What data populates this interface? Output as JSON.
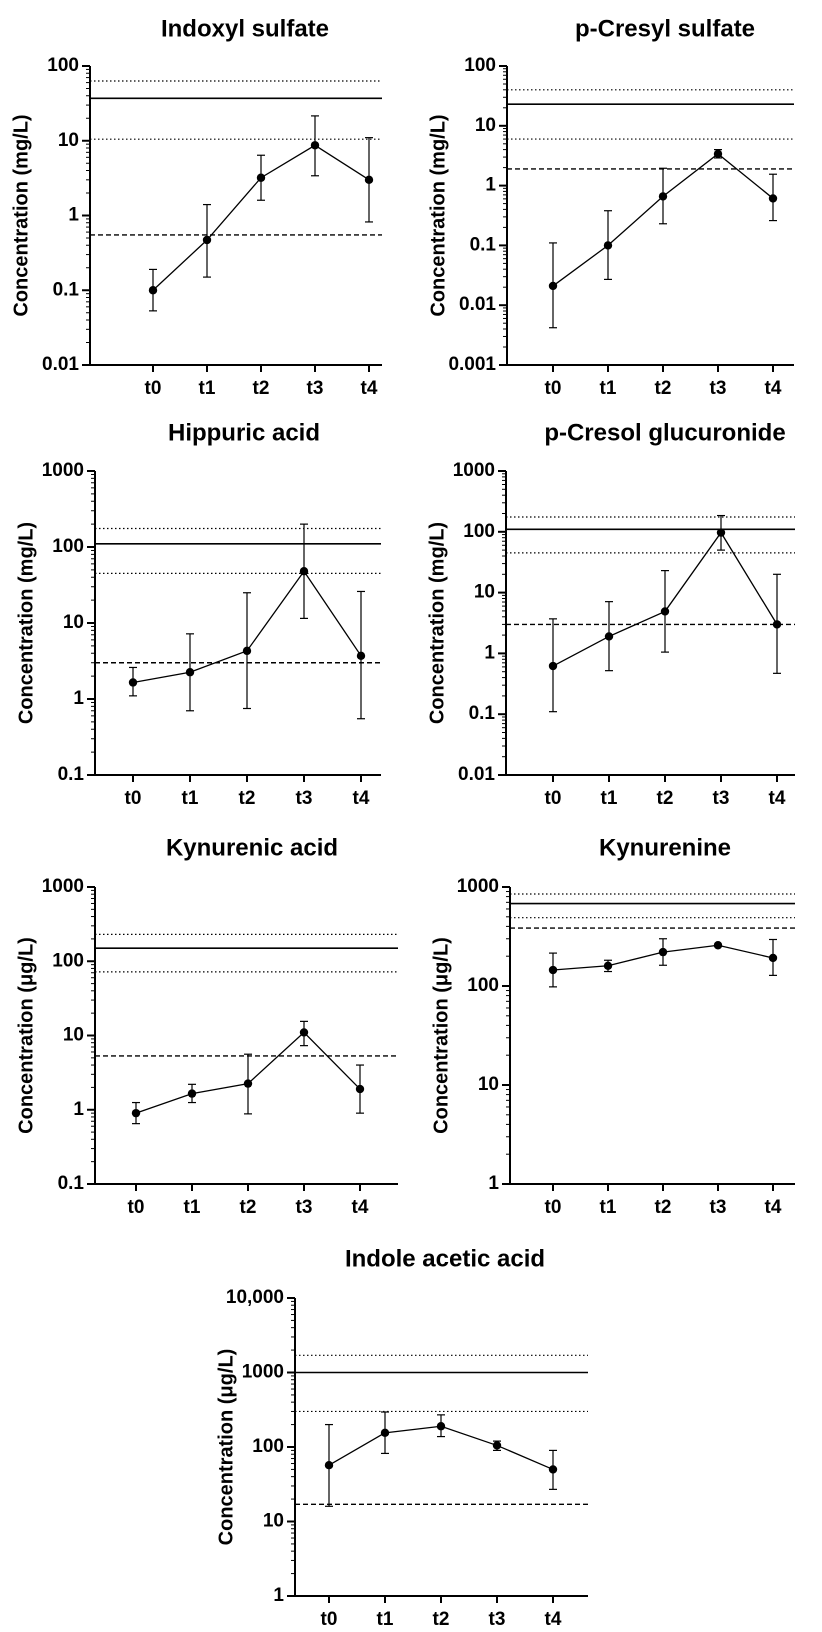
{
  "chart_data": [
    {
      "type": "line",
      "title": "Indoxyl sulfate",
      "ylabel": "Concentration (mg/L)",
      "yscale": "log",
      "ylim": [
        0.01,
        100
      ],
      "yticks": [
        "0.01",
        "0.1",
        "1",
        "10",
        "100"
      ],
      "categories": [
        "t0",
        "t1",
        "t2",
        "t3",
        "t4"
      ],
      "series": [
        {
          "values": [
            0.1,
            0.47,
            3.2,
            8.7,
            3.0
          ],
          "err_low": [
            0.053,
            0.15,
            1.6,
            3.4,
            0.82
          ],
          "err_high": [
            0.19,
            1.4,
            6.4,
            21.5,
            11.0
          ]
        }
      ],
      "reference_lines": [
        {
          "style": "dotted",
          "value": 63
        },
        {
          "style": "solid",
          "value": 37
        },
        {
          "style": "dotted",
          "value": 10.5
        },
        {
          "style": "dashed",
          "value": 0.55
        }
      ]
    },
    {
      "type": "line",
      "title": "p-Cresyl sulfate",
      "ylabel": "Concentration (mg/L)",
      "yscale": "log",
      "ylim": [
        0.001,
        100
      ],
      "yticks": [
        "0.001",
        "0.01",
        "0.1",
        "1",
        "10",
        "100"
      ],
      "categories": [
        "t0",
        "t1",
        "t2",
        "t3",
        "t4"
      ],
      "series": [
        {
          "values": [
            0.021,
            0.1,
            0.66,
            3.4,
            0.61
          ],
          "err_low": [
            0.0042,
            0.027,
            0.23,
            2.9,
            0.26
          ],
          "err_high": [
            0.11,
            0.38,
            1.95,
            4.0,
            1.55
          ]
        }
      ],
      "reference_lines": [
        {
          "style": "dotted",
          "value": 40
        },
        {
          "style": "solid",
          "value": 23
        },
        {
          "style": "dotted",
          "value": 6
        },
        {
          "style": "dashed",
          "value": 1.9
        }
      ]
    },
    {
      "type": "line",
      "title": "Hippuric acid",
      "ylabel": "Concentration (mg/L)",
      "yscale": "log",
      "ylim": [
        0.1,
        1000
      ],
      "yticks": [
        "0.1",
        "1",
        "10",
        "100",
        "1000"
      ],
      "categories": [
        "t0",
        "t1",
        "t2",
        "t3",
        "t4"
      ],
      "series": [
        {
          "values": [
            1.65,
            2.25,
            4.3,
            48,
            3.7
          ],
          "err_low": [
            1.1,
            0.7,
            0.75,
            11.5,
            0.55
          ],
          "err_high": [
            2.6,
            7.2,
            25,
            200,
            26
          ]
        }
      ],
      "reference_lines": [
        {
          "style": "dotted",
          "value": 175
        },
        {
          "style": "solid",
          "value": 110
        },
        {
          "style": "dotted",
          "value": 45
        },
        {
          "style": "dashed",
          "value": 3
        }
      ]
    },
    {
      "type": "line",
      "title": "p-Cresol glucuronide",
      "ylabel": "Concentration (mg/L)",
      "yscale": "log",
      "ylim": [
        0.01,
        1000
      ],
      "yticks": [
        "0.01",
        "0.1",
        "1",
        "10",
        "100",
        "1000"
      ],
      "categories": [
        "t0",
        "t1",
        "t2",
        "t3",
        "t4"
      ],
      "series": [
        {
          "values": [
            0.62,
            1.9,
            4.9,
            97,
            3.0
          ],
          "err_low": [
            0.11,
            0.52,
            1.05,
            50,
            0.47
          ],
          "err_high": [
            3.7,
            7.1,
            23,
            185,
            20
          ]
        }
      ],
      "reference_lines": [
        {
          "style": "dotted",
          "value": 175
        },
        {
          "style": "solid",
          "value": 110
        },
        {
          "style": "dotted",
          "value": 45
        },
        {
          "style": "dashed",
          "value": 3
        }
      ]
    },
    {
      "type": "line",
      "title": "Kynurenic acid",
      "ylabel": "Concentration (μg/L)",
      "yscale": "log",
      "ylim": [
        0.1,
        1000
      ],
      "yticks": [
        "0.1",
        "1",
        "10",
        "100",
        "1000"
      ],
      "categories": [
        "t0",
        "t1",
        "t2",
        "t3",
        "t4"
      ],
      "series": [
        {
          "values": [
            0.9,
            1.65,
            2.25,
            11,
            1.9
          ],
          "err_low": [
            0.65,
            1.25,
            0.88,
            7.3,
            0.9
          ],
          "err_high": [
            1.25,
            2.2,
            5.6,
            15.5,
            4.0
          ]
        }
      ],
      "reference_lines": [
        {
          "style": "dotted",
          "value": 230
        },
        {
          "style": "solid",
          "value": 150
        },
        {
          "style": "dotted",
          "value": 72
        },
        {
          "style": "dashed",
          "value": 5.3
        }
      ]
    },
    {
      "type": "line",
      "title": "Kynurenine",
      "ylabel": "Concentration (μg/L)",
      "yscale": "log",
      "ylim": [
        1,
        1000
      ],
      "yticks": [
        "1",
        "10",
        "100",
        "1000"
      ],
      "categories": [
        "t0",
        "t1",
        "t2",
        "t3",
        "t4"
      ],
      "series": [
        {
          "values": [
            145,
            160,
            220,
            258,
            192
          ],
          "err_low": [
            98,
            140,
            162,
            253,
            128
          ],
          "err_high": [
            215,
            182,
            300,
            263,
            295
          ]
        }
      ],
      "reference_lines": [
        {
          "style": "dotted",
          "value": 850
        },
        {
          "style": "solid",
          "value": 680
        },
        {
          "style": "dotted",
          "value": 490
        },
        {
          "style": "dashed",
          "value": 385
        }
      ]
    },
    {
      "type": "line",
      "title": "Indole acetic acid",
      "ylabel": "Concentration (μg/L)",
      "yscale": "log",
      "ylim": [
        1,
        10000
      ],
      "yticks": [
        "1",
        "10",
        "100",
        "1000",
        "10,000"
      ],
      "categories": [
        "t0",
        "t1",
        "t2",
        "t3",
        "t4"
      ],
      "series": [
        {
          "values": [
            57,
            155,
            190,
            105,
            50
          ],
          "err_low": [
            16,
            82,
            138,
            90,
            27
          ],
          "err_high": [
            200,
            295,
            270,
            120,
            90
          ]
        }
      ],
      "reference_lines": [
        {
          "style": "dotted",
          "value": 1700
        },
        {
          "style": "solid",
          "value": 1000
        },
        {
          "style": "dotted",
          "value": 300
        },
        {
          "style": "dashed",
          "value": 17
        }
      ]
    }
  ]
}
